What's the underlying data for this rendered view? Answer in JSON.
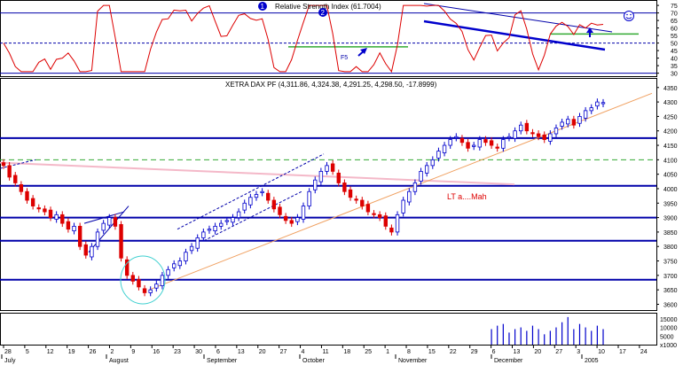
{
  "chart_data": {
    "type": "candlestick",
    "indicator_title": "Relative Strength Index (61.7004)",
    "price_title": "XETRA DAX PF (4,311.86, 4,324.38, 4,291.25, 4,298.50, -17.8999)",
    "annotation_ltaman": "LT a....Mah",
    "annotation_f5": "F5",
    "marker_labels": [
      "1",
      "2"
    ],
    "rsi_ticks": [
      "75",
      "70",
      "65",
      "60",
      "55",
      "50",
      "45",
      "40",
      "35",
      "30"
    ],
    "price_ticks": [
      "4350",
      "4300",
      "4250",
      "4200",
      "4150",
      "4100",
      "4050",
      "4000",
      "3950",
      "3900",
      "3850",
      "3800",
      "3750",
      "3700",
      "3650",
      "3600"
    ],
    "volume_ticks": [
      "15000",
      "10000",
      "5000",
      "x1000"
    ],
    "x_ticks": [
      "28",
      "5",
      "12",
      "19",
      "26",
      "2",
      "9",
      "16",
      "23",
      "30",
      "6",
      "13",
      "20",
      "27",
      "4",
      "11",
      "18",
      "25",
      "1",
      "8",
      "15",
      "22",
      "29",
      "6",
      "13",
      "20",
      "27",
      "3",
      "10",
      "17",
      "24"
    ],
    "months": [
      "July",
      "August",
      "September",
      "October",
      "November",
      "December",
      "2005"
    ],
    "ylim_price": [
      3580,
      4380
    ],
    "ylim_rsi": [
      28,
      78
    ],
    "support_levels": [
      4175,
      4010,
      3900,
      3820,
      3685
    ],
    "dashed_level": 4100,
    "rsi_levels": [
      70,
      50,
      30
    ],
    "colors": {
      "up": "#0000cc",
      "down": "#dd0000",
      "grid": "#0000aa",
      "rsi": "#dd0000",
      "trend": "#f0a060",
      "pink": "#f4b8c8",
      "green": "#33aa33",
      "circle": "#40d0d0"
    },
    "ohlc_close": [
      4080,
      4040,
      4020,
      3990,
      3960,
      3940,
      3930,
      3920,
      3900,
      3910,
      3880,
      3860,
      3870,
      3800,
      3770,
      3800,
      3850,
      3880,
      3900,
      3870,
      3760,
      3700,
      3680,
      3660,
      3640,
      3650,
      3670,
      3700,
      3720,
      3740,
      3750,
      3780,
      3800,
      3830,
      3850,
      3860,
      3870,
      3880,
      3890,
      3900,
      3920,
      3950,
      3970,
      3980,
      3990,
      3960,
      3930,
      3910,
      3890,
      3880,
      3900,
      3940,
      3990,
      4030,
      4060,
      4080,
      4060,
      4020,
      3990,
      3970,
      3960,
      3940,
      3920,
      3910,
      3900,
      3870,
      3850,
      3910,
      3960,
      3990,
      4020,
      4060,
      4080,
      4100,
      4130,
      4150,
      4170,
      4180,
      4160,
      4140,
      4150,
      4170,
      4160,
      4150,
      4140,
      4170,
      4180,
      4200,
      4220,
      4200,
      4190,
      4180,
      4170,
      4190,
      4210,
      4230,
      4240,
      4220,
      4250,
      4270,
      4280,
      4300,
      4298
    ],
    "volume": [
      0,
      0,
      0,
      0,
      0,
      0,
      0,
      0,
      0,
      0,
      0,
      0,
      0,
      0,
      0,
      0,
      0,
      0,
      0,
      0,
      0,
      0,
      0,
      0,
      0,
      0,
      0,
      0,
      0,
      0,
      0,
      0,
      0,
      0,
      0,
      0,
      0,
      0,
      0,
      0,
      0,
      0,
      0,
      0,
      0,
      0,
      0,
      0,
      0,
      0,
      0,
      0,
      0,
      0,
      0,
      0,
      0,
      0,
      0,
      0,
      0,
      0,
      0,
      0,
      0,
      0,
      0,
      0,
      0,
      0,
      0,
      0,
      0,
      0,
      0,
      0,
      0,
      0,
      0,
      0,
      0,
      0,
      0,
      9000,
      11000,
      12000,
      7000,
      9000,
      10000,
      8000,
      11000,
      9000,
      6000,
      8000,
      10000,
      13000,
      16000,
      9000,
      12000,
      10000,
      8000,
      11000,
      9000
    ]
  }
}
